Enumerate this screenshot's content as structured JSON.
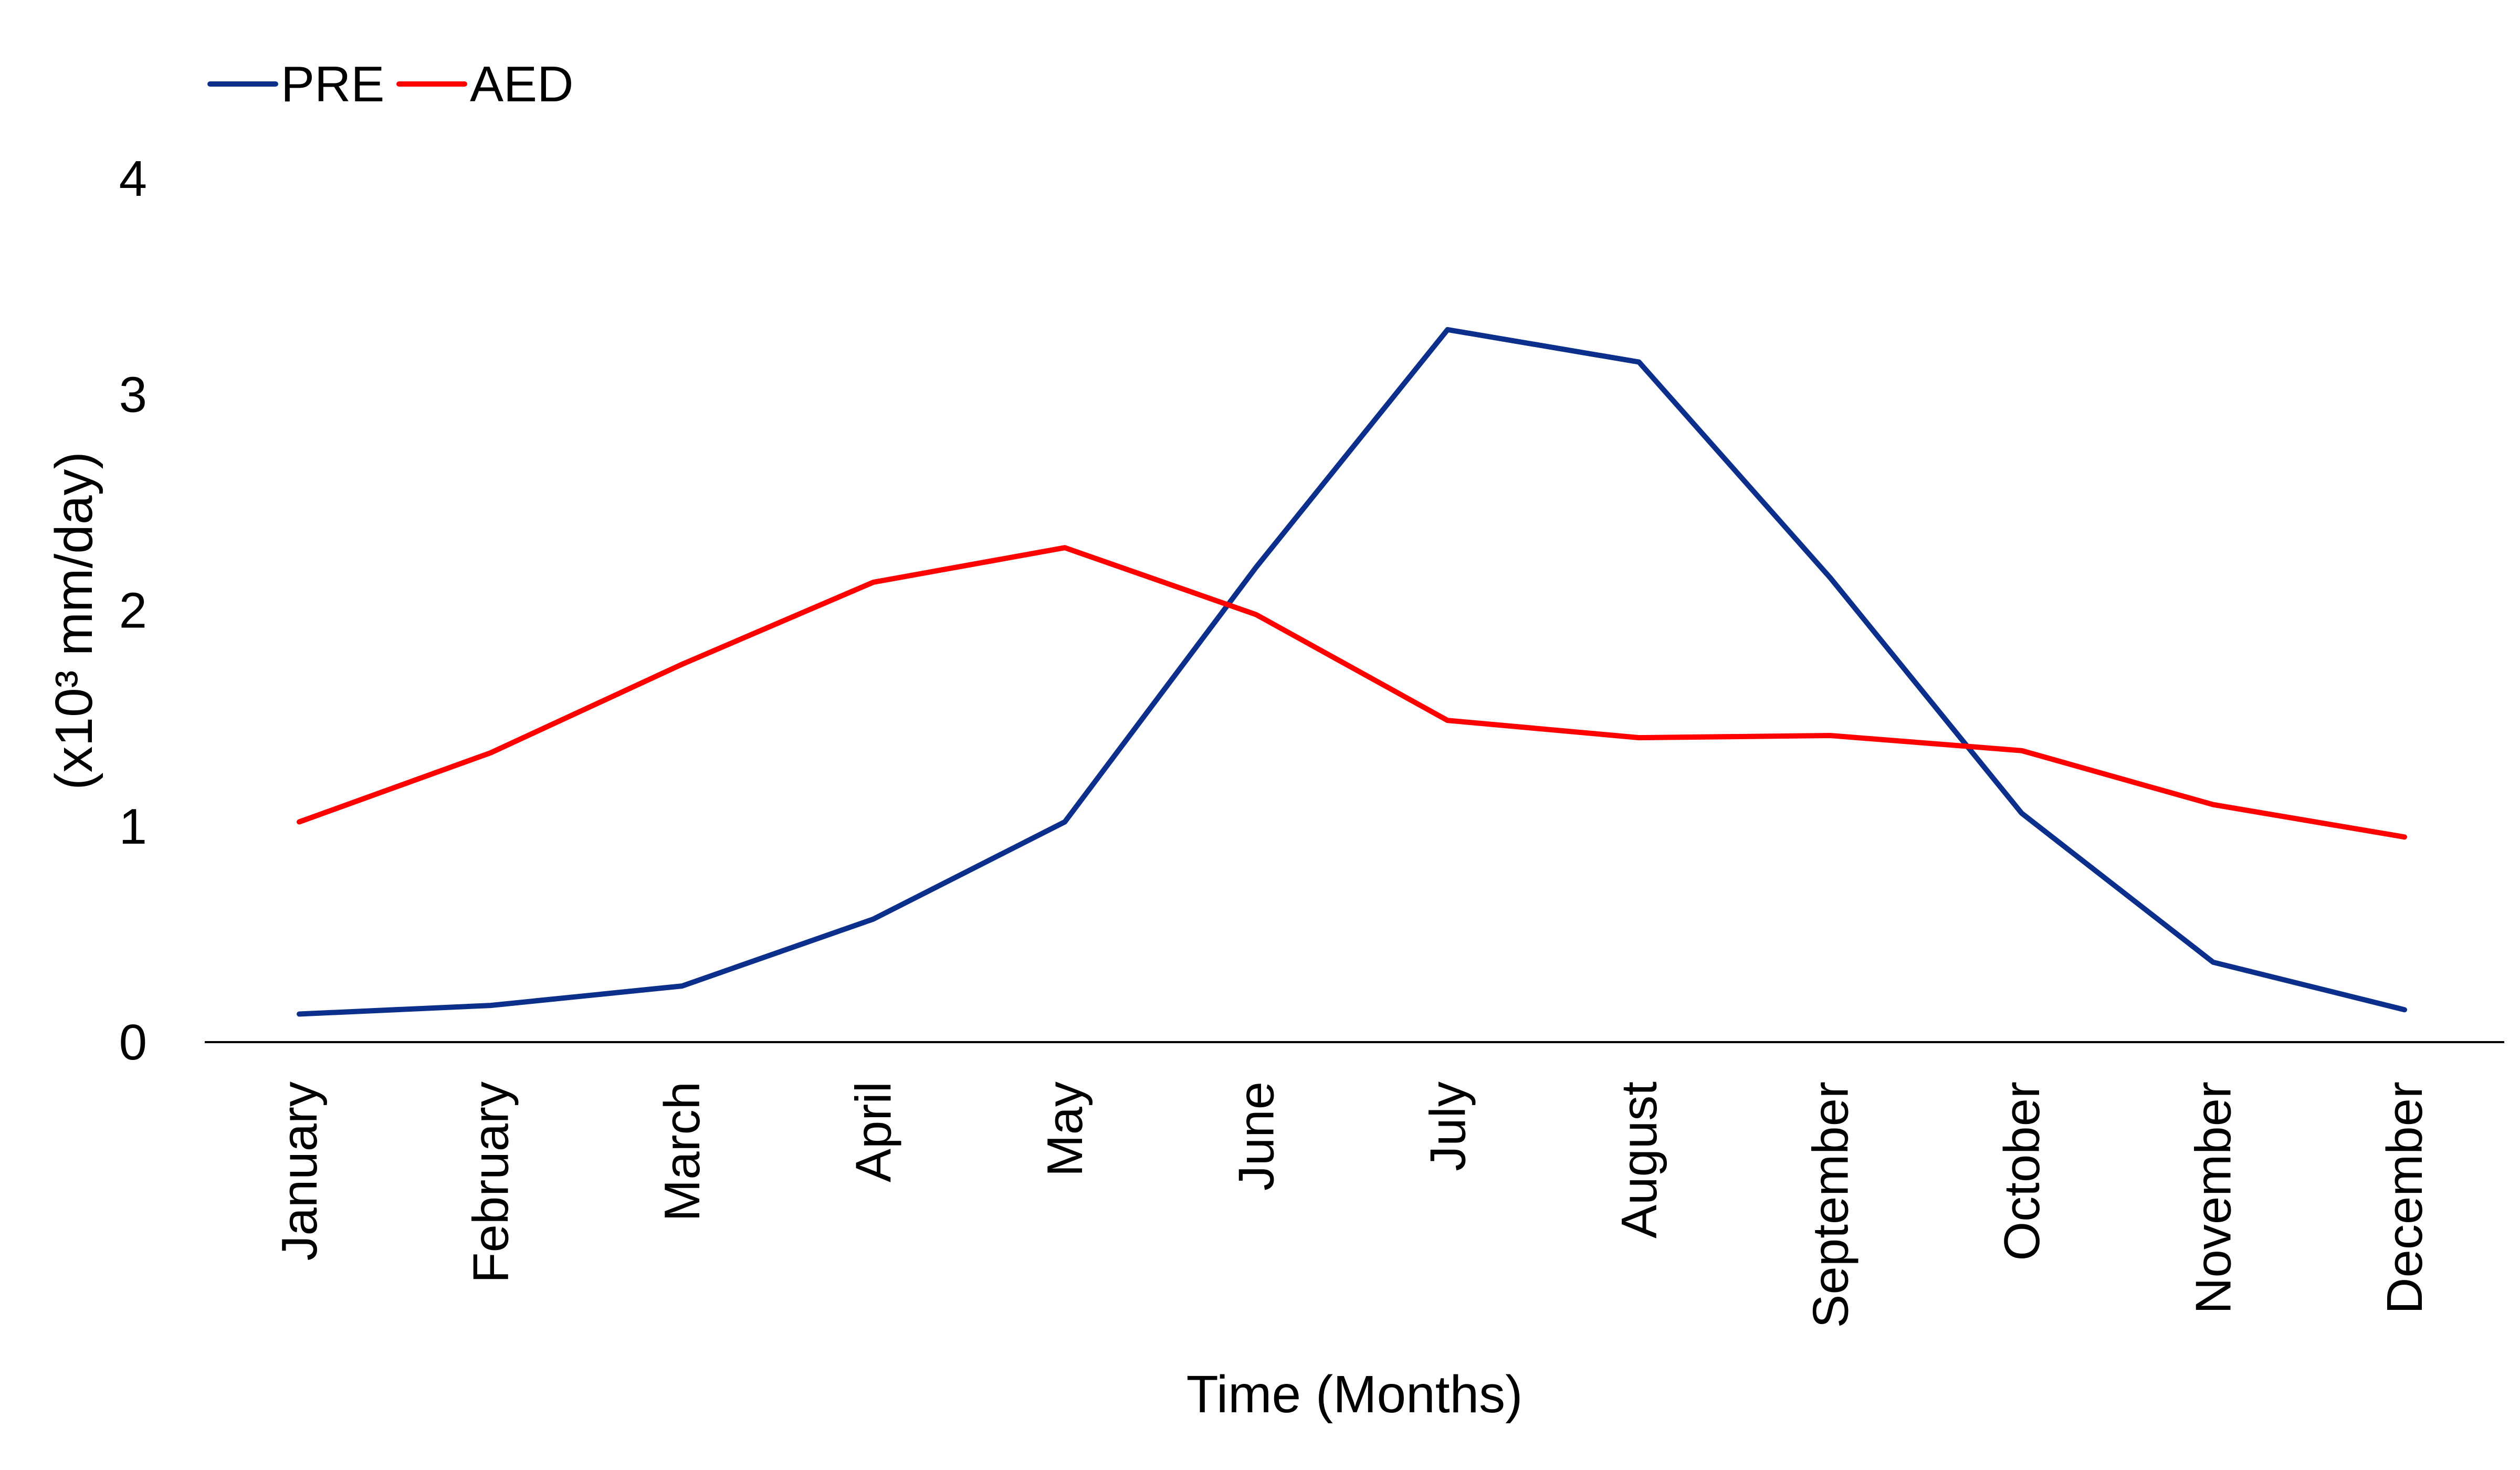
{
  "chart_data": {
    "type": "line",
    "categories": [
      "January",
      "February",
      "March",
      "April",
      "May",
      "June",
      "July",
      "August",
      "September",
      "October",
      "November",
      "December"
    ],
    "series": [
      {
        "name": "PRE",
        "color": "#0b2f8a",
        "values": [
          0.13,
          0.17,
          0.26,
          0.57,
          1.02,
          2.2,
          3.3,
          3.15,
          2.15,
          1.06,
          0.37,
          0.15
        ]
      },
      {
        "name": "AED",
        "color": "#ff0000",
        "values": [
          1.02,
          1.34,
          1.75,
          2.13,
          2.29,
          1.98,
          1.49,
          1.41,
          1.42,
          1.35,
          1.1,
          0.95
        ]
      }
    ],
    "xlabel": "Time (Months)",
    "ylabel": "(x10³ mm/day)",
    "ylim": [
      0,
      4
    ],
    "yticks": [
      0,
      1,
      2,
      3,
      4
    ],
    "grid": false,
    "legend_position": "top-left"
  }
}
